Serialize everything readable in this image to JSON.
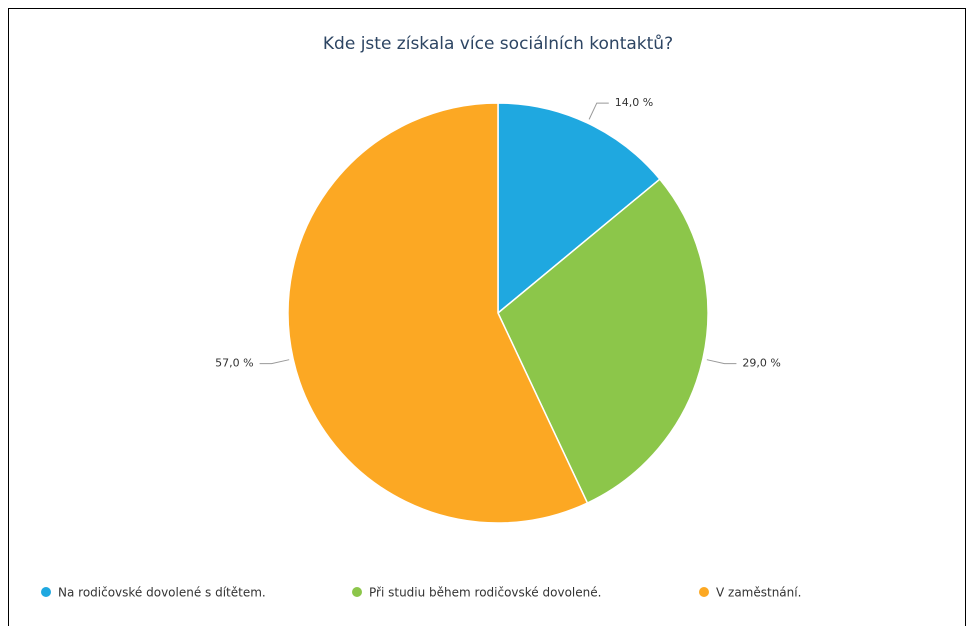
{
  "chart_data": {
    "type": "pie",
    "title": "Kde jste získala více sociálních kontaktů?",
    "categories": [
      "Na rodičovské dovolené s dítětem.",
      "Při studiu během rodičovské dovolené.",
      "V zaměstnání."
    ],
    "values": [
      14,
      29,
      57
    ],
    "value_labels": [
      "14,0 %",
      "29,0 %",
      "57,0 %"
    ],
    "colors": [
      "#1fa8e0",
      "#8cc64a",
      "#fca823"
    ],
    "legend": "bottom"
  }
}
